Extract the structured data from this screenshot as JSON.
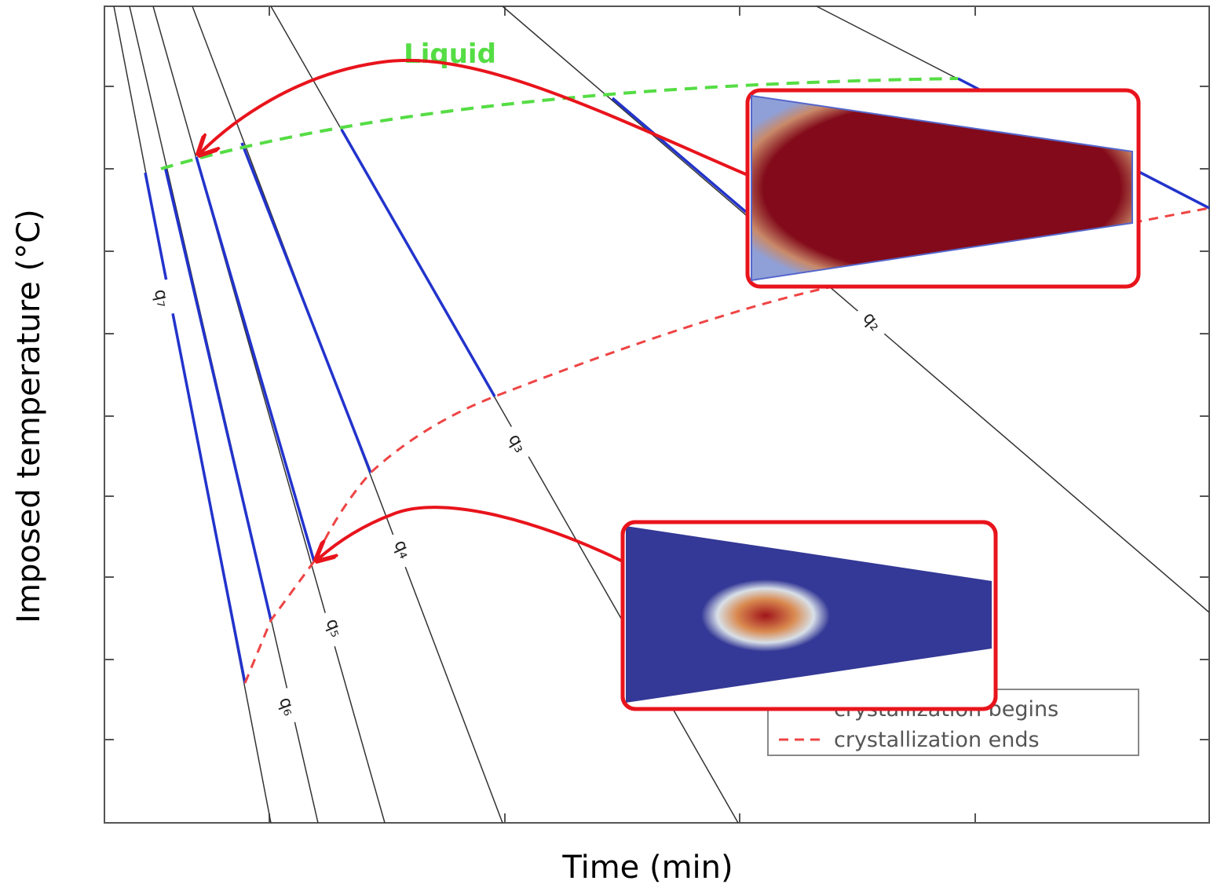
{
  "diagram": {
    "axes": {
      "x_label": "Time (min)",
      "y_label": "Imposed temperature (°C)"
    },
    "liquid_label": "Liquid",
    "curve_labels": [
      "q₇",
      "q₆",
      "q₅",
      "q₄",
      "q₃",
      "q₂"
    ],
    "legend": {
      "entries": [
        "crystallization begins",
        "crystallization ends"
      ]
    }
  }
}
